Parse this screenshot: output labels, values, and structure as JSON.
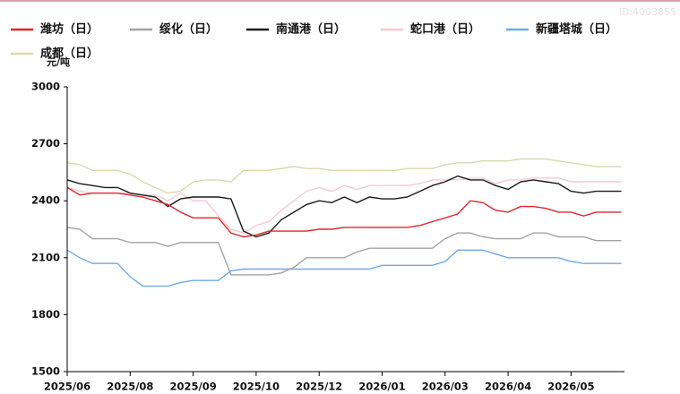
{
  "chart_data": {
    "type": "line",
    "y_label": "元/吨",
    "watermark": "ID:4003855",
    "categories": [
      "2025/06",
      null,
      null,
      null,
      null,
      "2025/08",
      null,
      null,
      null,
      null,
      "2025/09",
      null,
      null,
      null,
      null,
      "2025/10",
      null,
      null,
      null,
      null,
      "2025/12",
      null,
      null,
      null,
      null,
      "2026/01",
      null,
      null,
      null,
      null,
      "2026/03",
      null,
      null,
      null,
      null,
      "2026/04",
      null,
      null,
      null,
      null,
      "2026/05",
      null,
      null,
      null,
      null
    ],
    "ylim": [
      1500,
      3000
    ],
    "yticks": [
      1500,
      1800,
      2100,
      2400,
      2700,
      3000
    ],
    "series": [
      {
        "name": "潍坊（日）",
        "color": "#e0262c",
        "values": [
          2470,
          2430,
          2440,
          2440,
          2440,
          2430,
          2420,
          2400,
          2380,
          2340,
          2310,
          2310,
          2310,
          2230,
          2210,
          2220,
          2240,
          2240,
          2240,
          2240,
          2250,
          2250,
          2260,
          2260,
          2260,
          2260,
          2260,
          2260,
          2270,
          2290,
          2310,
          2330,
          2400,
          2390,
          2350,
          2340,
          2370,
          2370,
          2360,
          2340,
          2340,
          2320,
          2340,
          2340,
          2340
        ]
      },
      {
        "name": "绥化（日）",
        "color": "#a3a3a3",
        "values": [
          2260,
          2250,
          2200,
          2200,
          2200,
          2180,
          2180,
          2180,
          2160,
          2180,
          2180,
          2180,
          2180,
          2010,
          2010,
          2010,
          2010,
          2020,
          2050,
          2100,
          2100,
          2100,
          2100,
          2130,
          2150,
          2150,
          2150,
          2150,
          2150,
          2150,
          2200,
          2230,
          2230,
          2210,
          2200,
          2200,
          2200,
          2230,
          2230,
          2210,
          2210,
          2210,
          2190,
          2190,
          2190
        ]
      },
      {
        "name": "南通港（日）",
        "color": "#1a1a1a",
        "values": [
          2510,
          2490,
          2480,
          2470,
          2470,
          2440,
          2430,
          2420,
          2370,
          2410,
          2420,
          2420,
          2420,
          2410,
          2240,
          2210,
          2230,
          2300,
          2340,
          2380,
          2400,
          2390,
          2420,
          2390,
          2420,
          2410,
          2410,
          2420,
          2450,
          2480,
          2500,
          2530,
          2510,
          2510,
          2480,
          2460,
          2500,
          2510,
          2500,
          2490,
          2450,
          2440,
          2450,
          2450,
          2450
        ]
      },
      {
        "name": "蛇口港（日）",
        "color": "#f6c9d1",
        "values": [
          2470,
          2450,
          2440,
          2440,
          2440,
          2440,
          2430,
          2430,
          2400,
          2440,
          2400,
          2400,
          2320,
          2250,
          2230,
          2270,
          2290,
          2350,
          2400,
          2450,
          2470,
          2450,
          2480,
          2460,
          2480,
          2480,
          2480,
          2480,
          2490,
          2510,
          2510,
          2510,
          2520,
          2520,
          2490,
          2510,
          2510,
          2520,
          2520,
          2520,
          2500,
          2500,
          2500,
          2500,
          2500
        ]
      },
      {
        "name": "新疆塔城（日）",
        "color": "#6fa8e6",
        "values": [
          2140,
          2100,
          2070,
          2070,
          2070,
          2000,
          1950,
          1950,
          1950,
          1970,
          1980,
          1980,
          1980,
          2030,
          2040,
          2040,
          2040,
          2040,
          2040,
          2040,
          2040,
          2040,
          2040,
          2040,
          2040,
          2060,
          2060,
          2060,
          2060,
          2060,
          2080,
          2140,
          2140,
          2140,
          2120,
          2100,
          2100,
          2100,
          2100,
          2100,
          2080,
          2070,
          2070,
          2070,
          2070
        ]
      },
      {
        "name": "成都（日）",
        "color": "#d9d9aa",
        "values": [
          2600,
          2590,
          2560,
          2560,
          2560,
          2540,
          2500,
          2470,
          2440,
          2450,
          2500,
          2510,
          2510,
          2500,
          2560,
          2560,
          2560,
          2570,
          2580,
          2570,
          2570,
          2560,
          2560,
          2560,
          2560,
          2560,
          2560,
          2570,
          2570,
          2570,
          2590,
          2600,
          2600,
          2610,
          2610,
          2610,
          2620,
          2620,
          2620,
          2610,
          2600,
          2590,
          2580,
          2580,
          2580
        ]
      }
    ]
  }
}
